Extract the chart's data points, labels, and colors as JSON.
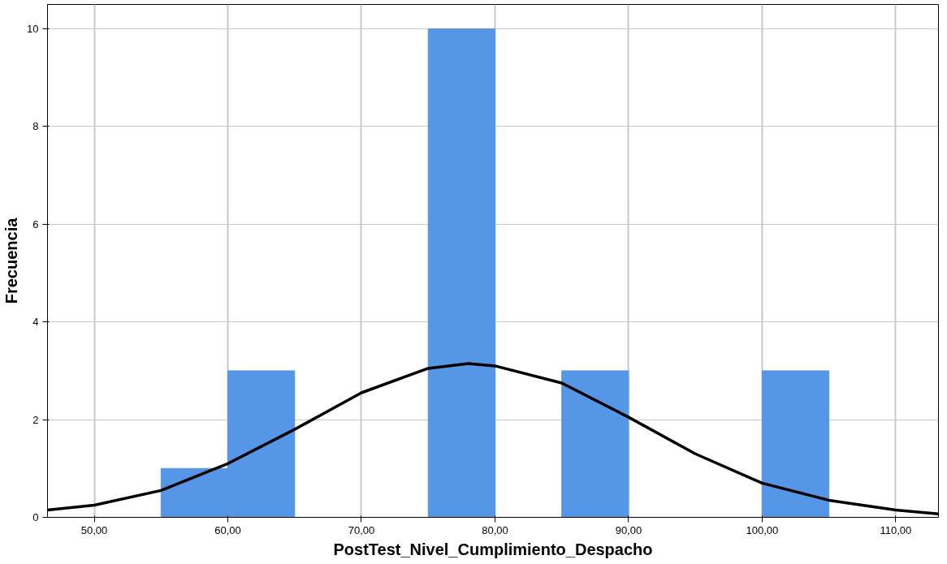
{
  "chart_data": {
    "type": "histogram",
    "xlabel": "PostTest_Nivel_Cumplimiento_Despacho",
    "ylabel": "Frecuencia",
    "bins": [
      55,
      60,
      65,
      70,
      75,
      80,
      85,
      90,
      95,
      100,
      105
    ],
    "values": [
      1,
      3,
      0,
      0,
      10,
      0,
      3,
      0,
      0,
      3
    ],
    "color": "#5596e6",
    "series": [
      {
        "type": "line",
        "color": "#000000",
        "x": [
          46.5,
          50,
          55,
          60,
          65,
          70,
          75,
          78,
          80,
          85,
          90,
          95,
          100,
          105,
          110,
          113.2
        ],
        "values": [
          0.15,
          0.25,
          0.55,
          1.1,
          1.8,
          2.55,
          3.05,
          3.15,
          3.1,
          2.75,
          2.05,
          1.3,
          0.7,
          0.35,
          0.15,
          0.07
        ]
      }
    ],
    "xlim": [
      46.5,
      113.2
    ],
    "ylim": [
      0,
      10.5
    ],
    "xticks": [
      {
        "value": 50,
        "label": "50,00"
      },
      {
        "value": 60,
        "label": "60,00"
      },
      {
        "value": 70,
        "label": "70,00"
      },
      {
        "value": 80,
        "label": "80,00"
      },
      {
        "value": 90,
        "label": "90,00"
      },
      {
        "value": 100,
        "label": "100,00"
      },
      {
        "value": 110,
        "label": "110,00"
      }
    ],
    "yticks": [
      0,
      2,
      4,
      6,
      8,
      10
    ],
    "grid": true
  }
}
